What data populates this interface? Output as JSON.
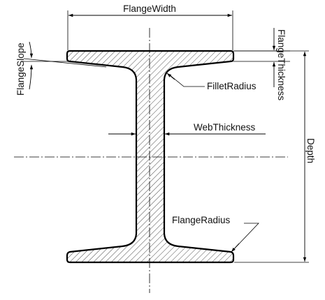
{
  "labels": {
    "flange_width": "FlangeWidth",
    "flange_thickness": "FlangeThickness",
    "flange_slope": "FlangeSlope",
    "fillet_radius": "FilletRadius",
    "web_thickness": "WebThickness",
    "depth": "Depth",
    "flange_radius": "FlangeRadius"
  },
  "icons": {
    "arrowhead": "arrowhead-icon",
    "hatch": "diagonal-hatch-pattern"
  }
}
